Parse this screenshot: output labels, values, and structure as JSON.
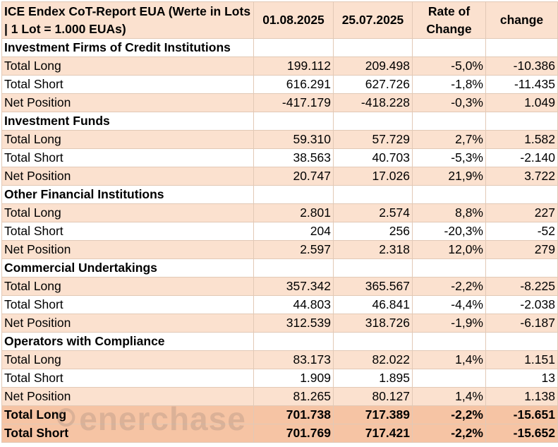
{
  "header": {
    "title": "ICE Endex CoT-Report EUA (Werte in Lots | 1 Lot = 1.000 EUAs)",
    "col1": "01.08.2025",
    "col2": "25.07.2025",
    "col3": "Rate of Change",
    "col4": "change"
  },
  "groups": [
    {
      "name": "Investment Firms of Credit Institutions",
      "rows": [
        {
          "label": "Total Long",
          "v1": "199.112",
          "v2": "209.498",
          "rate": "-5,0%",
          "change": "-10.386"
        },
        {
          "label": "Total Short",
          "v1": "616.291",
          "v2": "627.726",
          "rate": "-1,8%",
          "change": "-11.435"
        },
        {
          "label": "Net Position",
          "v1": "-417.179",
          "v2": "-418.228",
          "rate": "-0,3%",
          "change": "1.049"
        }
      ]
    },
    {
      "name": "Investment Funds",
      "rows": [
        {
          "label": "Total Long",
          "v1": "59.310",
          "v2": "57.729",
          "rate": "2,7%",
          "change": "1.582"
        },
        {
          "label": "Total Short",
          "v1": "38.563",
          "v2": "40.703",
          "rate": "-5,3%",
          "change": "-2.140"
        },
        {
          "label": "Net Position",
          "v1": "20.747",
          "v2": "17.026",
          "rate": "21,9%",
          "change": "3.722"
        }
      ]
    },
    {
      "name": "Other Financial Institutions",
      "rows": [
        {
          "label": "Total Long",
          "v1": "2.801",
          "v2": "2.574",
          "rate": "8,8%",
          "change": "227"
        },
        {
          "label": "Total Short",
          "v1": "204",
          "v2": "256",
          "rate": "-20,3%",
          "change": "-52"
        },
        {
          "label": "Net Position",
          "v1": "2.597",
          "v2": "2.318",
          "rate": "12,0%",
          "change": "279"
        }
      ]
    },
    {
      "name": "Commercial Undertakings",
      "rows": [
        {
          "label": "Total Long",
          "v1": "357.342",
          "v2": "365.567",
          "rate": "-2,2%",
          "change": "-8.225"
        },
        {
          "label": "Total Short",
          "v1": "44.803",
          "v2": "46.841",
          "rate": "-4,4%",
          "change": "-2.038"
        },
        {
          "label": "Net Position",
          "v1": "312.539",
          "v2": "318.726",
          "rate": "-1,9%",
          "change": "-6.187"
        }
      ]
    },
    {
      "name": "Operators with Compliance",
      "rows": [
        {
          "label": "Total Long",
          "v1": "83.173",
          "v2": "82.022",
          "rate": "1,4%",
          "change": "1.151"
        },
        {
          "label": "Total Short",
          "v1": "1.909",
          "v2": "1.895",
          "rate": "",
          "change": "13"
        },
        {
          "label": "Net Position",
          "v1": "81.265",
          "v2": "80.127",
          "rate": "1,4%",
          "change": "1.138"
        }
      ]
    }
  ],
  "totals": [
    {
      "label": "Total Long",
      "v1": "701.738",
      "v2": "717.389",
      "rate": "-2,2%",
      "change": "-15.651"
    },
    {
      "label": "Total Short",
      "v1": "701.769",
      "v2": "717.421",
      "rate": "-2,2%",
      "change": "-15.652"
    }
  ],
  "watermark": "enerchase"
}
